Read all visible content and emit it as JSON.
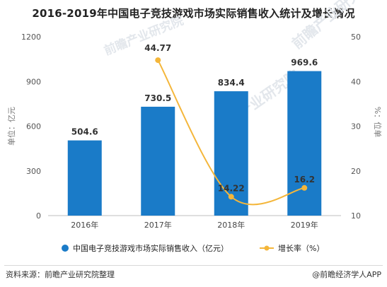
{
  "title": "2016-2019年中国电子竞技游戏市场实际销售收入统计及增长情况",
  "footer": {
    "source": "资料来源：前瞻产业研究院整理",
    "brand": "@前瞻经济学人APP"
  },
  "watermark": {
    "text": "前瞻产业研究院"
  },
  "chart_data": {
    "type": "bar",
    "categories": [
      "2016年",
      "2017年",
      "2018年",
      "2019年"
    ],
    "series": [
      {
        "name": "中国电子竞技游戏市场实际销售收入（亿元）",
        "type": "bar",
        "axis": "left",
        "values": [
          504.6,
          730.5,
          834.4,
          969.6
        ],
        "color": "#1a7bc8"
      },
      {
        "name": "增长率（%）",
        "type": "line",
        "axis": "right",
        "values": [
          null,
          44.77,
          14.22,
          16.2
        ],
        "color": "#f4b63a"
      }
    ],
    "ylabel_left": "单位：亿元",
    "ylabel_right": "%：位单",
    "ylim_left": [
      0,
      1200
    ],
    "yticks_left": [
      "0",
      "300",
      "600",
      "900",
      "1200"
    ],
    "ylim_right": [
      10,
      50
    ],
    "yticks_right": [
      "10",
      "20",
      "30",
      "40",
      "50"
    ],
    "legend_position": "bottom",
    "grid": false
  }
}
